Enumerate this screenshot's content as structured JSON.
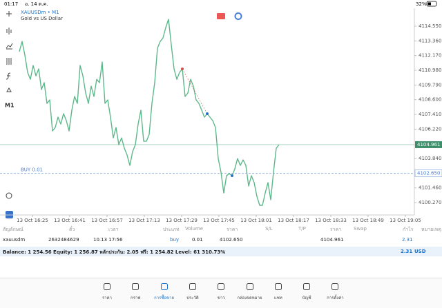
{
  "status_bar": {
    "time": "01:17",
    "date": "อ. 14 ต.ค.",
    "battery": "32%"
  },
  "chart_data": {
    "type": "line",
    "title": "XAUUSDm • M1",
    "subtitle": "Gold vs US Dollar",
    "timeframe": "M1",
    "color": "#5cb88a",
    "series": [
      {
        "name": "XAUUSDm",
        "color": "#5cb88a",
        "values": [
          4112.49,
          4113.32,
          4112.21,
          4110.81,
          4110.25,
          4111.37,
          4110.53,
          4111.09,
          4109.42,
          4109.98,
          4108.3,
          4108.58,
          4106.07,
          4106.35,
          4107.19,
          4106.63,
          4107.47,
          4106.91,
          4106.07,
          4107.75,
          4108.86,
          4108.3,
          4111.37,
          4110.53,
          4109.14,
          4108.3,
          4109.7,
          4108.86,
          4110.25,
          4109.98,
          4111.65,
          4108.3,
          4108.58,
          4107.19,
          4105.51,
          4106.35,
          4104.96,
          4105.51,
          4104.68,
          4104.12,
          4103.28,
          4104.4,
          4104.96,
          4106.63,
          4107.75,
          4105.24,
          4105.24,
          4105.79,
          4108.3,
          4109.98,
          4112.77,
          4113.32,
          4113.6,
          4114.44,
          4115.11,
          4113.04,
          4111.09,
          4110.25,
          4110.81,
          4111.09,
          4108.86,
          4109.14,
          4110.25,
          4109.7,
          4108.58,
          4108.3,
          4107.75,
          4107.19,
          4107.47,
          4107.19,
          4106.91,
          4106.35,
          4103.84,
          4102.73,
          4101.05,
          4102.45,
          4102.61,
          4102.45,
          4103.0,
          4103.84,
          4103.28,
          4103.73,
          4103.28,
          4101.61,
          4102.45,
          4101.89,
          4100.77,
          4100.05,
          4100.05,
          4101.05,
          4101.89,
          4100.5,
          4102.73,
          4104.68,
          4104.96
        ]
      }
    ],
    "xtick_labels": [
      "13 Oct 16:25",
      "13 Oct 16:41",
      "13 Oct 16:57",
      "13 Oct 17:13",
      "13 Oct 17:29",
      "13 Oct 17:45",
      "13 Oct 18:01",
      "13 Oct 18:17",
      "13 Oct 18:33",
      "13 Oct 18:49",
      "13 Oct 19:05"
    ],
    "ylim": [
      4099.27,
      4116.0
    ],
    "yticks": [
      {
        "value": 4114.55,
        "label": "4114.550"
      },
      {
        "value": 4113.36,
        "label": "4113.360"
      },
      {
        "value": 4112.17,
        "label": "4112.170"
      },
      {
        "value": 4110.98,
        "label": "4110.980"
      },
      {
        "value": 4109.79,
        "label": "4109.790"
      },
      {
        "value": 4108.6,
        "label": "4108.600"
      },
      {
        "value": 4107.41,
        "label": "4107.410"
      },
      {
        "value": 4106.22,
        "label": "4106.220"
      },
      {
        "value": 4103.84,
        "label": "4103.840"
      },
      {
        "value": 4101.46,
        "label": "4101.460"
      },
      {
        "value": 4100.27,
        "label": "4100.270"
      }
    ],
    "current_price": 4104.961,
    "buy_line": {
      "label": "BUY 0.01",
      "price": {
        "value": 4102.65,
        "label": "4102.650"
      }
    }
  },
  "table": {
    "headers": [
      "สัญลักษณ์",
      "ตั๋ว",
      "เวลา",
      "ประเภท",
      "Volume",
      "ราคา",
      "S/L",
      "T/P",
      "ราคา",
      "Swap",
      "กำไร",
      "หมายเหตุ"
    ],
    "rows": [
      [
        "xauusdm",
        "2632484629",
        "10.13 17:56",
        "buy",
        "0.01",
        "4102.650",
        null,
        null,
        "4104.961",
        null,
        "2.31",
        null
      ]
    ],
    "summary": "Balance: 1 254.56 Equity: 1 256.87 หลักประกัน: 2.05 ฟรี: 1 254.82 Level: 61 310.73%",
    "summary_profit": "2.31",
    "currency": "USD"
  },
  "nav": [
    "ราคา",
    "กราฟ",
    "การซื้อขาย",
    "ประวัติ",
    "ข่าว",
    "กล่องจดหมาย",
    "แชท",
    "บัญชี",
    "การตั้งค่า"
  ]
}
